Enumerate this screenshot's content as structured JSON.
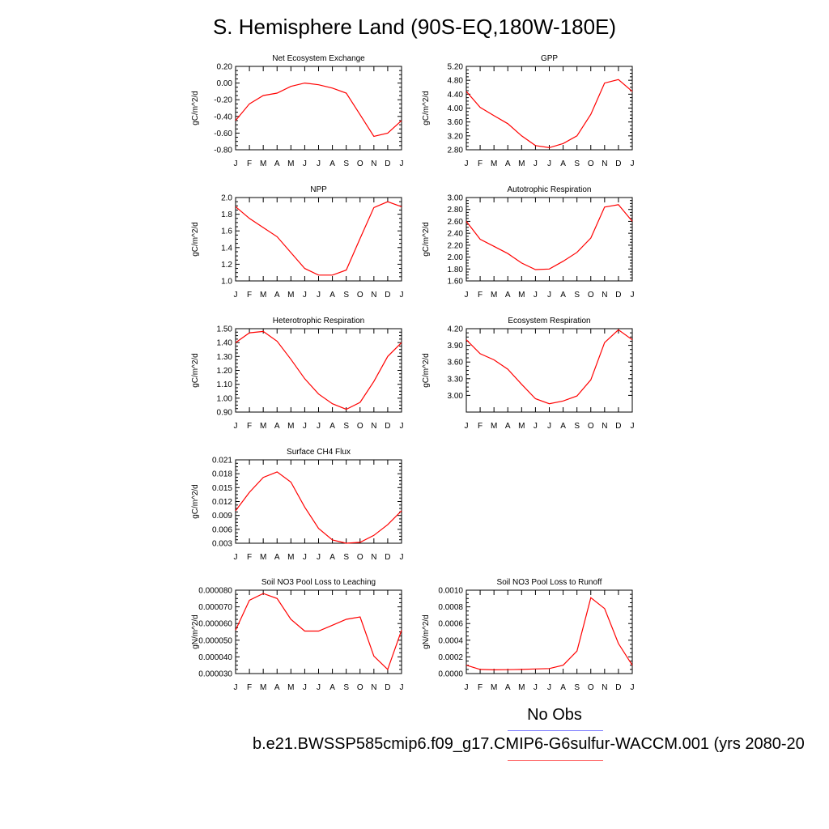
{
  "title": "S. Hemisphere Land (90S-EQ,180W-180E)",
  "colors": {
    "model": "#ff0000",
    "obs": "#8080ff",
    "axis": "#000000"
  },
  "legend": {
    "obs_label": "No Obs",
    "model_label": "b.e21.BWSSP585cmip6.f09_g17.CMIP6-G6sulfur-WACCM.001 (yrs 2080-20"
  },
  "chart_data": [
    {
      "type": "line",
      "title": "Net Ecosystem Exchange",
      "ylabel": "gC/m^2/d",
      "x": [
        "J",
        "F",
        "M",
        "A",
        "M",
        "J",
        "J",
        "A",
        "S",
        "O",
        "N",
        "D",
        "J"
      ],
      "ylim": [
        -0.8,
        0.2
      ],
      "yticks": [
        "0.20",
        "0.00",
        "-0.20",
        "-0.40",
        "-0.60",
        "-0.80"
      ],
      "yticks_values": [
        0.2,
        0.0,
        -0.2,
        -0.4,
        -0.6,
        -0.8
      ],
      "series": [
        {
          "values": [
            -0.45,
            -0.25,
            -0.15,
            -0.12,
            -0.04,
            0.0,
            -0.02,
            -0.06,
            -0.12,
            -0.38,
            -0.64,
            -0.6,
            -0.45
          ]
        }
      ]
    },
    {
      "type": "line",
      "title": "GPP",
      "ylabel": "gC/m^2/d",
      "x": [
        "J",
        "F",
        "M",
        "A",
        "M",
        "J",
        "J",
        "A",
        "S",
        "O",
        "N",
        "D",
        "J"
      ],
      "ylim": [
        2.8,
        5.2
      ],
      "yticks": [
        "5.20",
        "4.80",
        "4.40",
        "4.00",
        "3.60",
        "3.20",
        "2.80"
      ],
      "yticks_values": [
        5.2,
        4.8,
        4.4,
        4.0,
        3.6,
        3.2,
        2.8
      ],
      "series": [
        {
          "values": [
            4.48,
            4.02,
            3.78,
            3.55,
            3.2,
            2.92,
            2.86,
            2.98,
            3.2,
            3.82,
            4.72,
            4.82,
            4.48
          ]
        }
      ]
    },
    {
      "type": "line",
      "title": "NPP",
      "ylabel": "gC/m^2/d",
      "x": [
        "J",
        "F",
        "M",
        "A",
        "M",
        "J",
        "J",
        "A",
        "S",
        "O",
        "N",
        "D",
        "J"
      ],
      "ylim": [
        1.0,
        2.0
      ],
      "yticks": [
        "2.0",
        "1.8",
        "1.6",
        "1.4",
        "1.2",
        "1.0"
      ],
      "yticks_values": [
        2.0,
        1.8,
        1.6,
        1.4,
        1.2,
        1.0
      ],
      "series": [
        {
          "values": [
            1.89,
            1.75,
            1.64,
            1.53,
            1.34,
            1.15,
            1.07,
            1.07,
            1.13,
            1.51,
            1.88,
            1.95,
            1.89
          ]
        }
      ]
    },
    {
      "type": "line",
      "title": "Autotrophic Respiration",
      "ylabel": "gC/m^2/d",
      "x": [
        "J",
        "F",
        "M",
        "A",
        "M",
        "J",
        "J",
        "A",
        "S",
        "O",
        "N",
        "D",
        "J"
      ],
      "ylim": [
        1.6,
        3.0
      ],
      "yticks": [
        "3.00",
        "2.80",
        "2.60",
        "2.40",
        "2.20",
        "2.00",
        "1.80",
        "1.60"
      ],
      "yticks_values": [
        3.0,
        2.8,
        2.6,
        2.4,
        2.2,
        2.0,
        1.8,
        1.6
      ],
      "series": [
        {
          "values": [
            2.6,
            2.3,
            2.18,
            2.06,
            1.9,
            1.79,
            1.8,
            1.93,
            2.08,
            2.32,
            2.84,
            2.88,
            2.6
          ]
        }
      ]
    },
    {
      "type": "line",
      "title": "Heterotrophic Respiration",
      "ylabel": "gC/m^2/d",
      "x": [
        "J",
        "F",
        "M",
        "A",
        "M",
        "J",
        "J",
        "A",
        "S",
        "O",
        "N",
        "D",
        "J"
      ],
      "ylim": [
        0.9,
        1.5
      ],
      "yticks": [
        "1.50",
        "1.40",
        "1.30",
        "1.20",
        "1.10",
        "1.00",
        "0.90"
      ],
      "yticks_values": [
        1.5,
        1.4,
        1.3,
        1.2,
        1.1,
        1.0,
        0.9
      ],
      "series": [
        {
          "values": [
            1.4,
            1.47,
            1.48,
            1.41,
            1.28,
            1.14,
            1.03,
            0.96,
            0.92,
            0.97,
            1.12,
            1.3,
            1.4
          ]
        }
      ]
    },
    {
      "type": "line",
      "title": "Ecosystem Respiration",
      "ylabel": "gC/m^2/d",
      "x": [
        "J",
        "F",
        "M",
        "A",
        "M",
        "J",
        "J",
        "A",
        "S",
        "O",
        "N",
        "D",
        "J"
      ],
      "ylim": [
        2.7,
        4.2
      ],
      "yticks": [
        "4.20",
        "3.90",
        "3.60",
        "3.30",
        "3.00"
      ],
      "yticks_values": [
        4.2,
        3.9,
        3.6,
        3.3,
        3.0
      ],
      "series": [
        {
          "values": [
            4.0,
            3.75,
            3.64,
            3.47,
            3.2,
            2.94,
            2.85,
            2.9,
            2.99,
            3.28,
            3.95,
            4.18,
            4.0
          ]
        }
      ]
    },
    {
      "type": "line",
      "title": "Surface CH4 Flux",
      "ylabel": "gC/m^2/d",
      "x": [
        "J",
        "F",
        "M",
        "A",
        "M",
        "J",
        "J",
        "A",
        "S",
        "O",
        "N",
        "D",
        "J"
      ],
      "ylim": [
        0.003,
        0.021
      ],
      "yticks": [
        "0.021",
        "0.018",
        "0.015",
        "0.012",
        "0.009",
        "0.006",
        "0.003"
      ],
      "yticks_values": [
        0.021,
        0.018,
        0.015,
        0.012,
        0.009,
        0.006,
        0.003
      ],
      "series": [
        {
          "values": [
            0.01,
            0.014,
            0.0172,
            0.0184,
            0.0162,
            0.0108,
            0.0062,
            0.0037,
            0.003,
            0.0032,
            0.0047,
            0.007,
            0.01
          ]
        }
      ]
    },
    {
      "type": "line",
      "title": "Soil NO3 Pool Loss to Leaching",
      "ylabel": "gN/m^2/d",
      "x": [
        "J",
        "F",
        "M",
        "A",
        "M",
        "J",
        "J",
        "A",
        "S",
        "O",
        "N",
        "D",
        "J"
      ],
      "ylim": [
        3e-05,
        8e-05
      ],
      "yticks": [
        "0.000080",
        "0.000070",
        "0.000060",
        "0.000050",
        "0.000040",
        "0.000030"
      ],
      "yticks_values": [
        8e-05,
        7e-05,
        6e-05,
        5e-05,
        4e-05,
        3e-05
      ],
      "series": [
        {
          "values": [
            5.6e-05,
            7.4e-05,
            7.8e-05,
            7.5e-05,
            6.25e-05,
            5.55e-05,
            5.55e-05,
            5.9e-05,
            6.25e-05,
            6.4e-05,
            4.05e-05,
            3.25e-05,
            5.6e-05
          ]
        }
      ]
    },
    {
      "type": "line",
      "title": "Soil NO3 Pool Loss to Runoff",
      "ylabel": "gN/m^2/d",
      "x": [
        "J",
        "F",
        "M",
        "A",
        "M",
        "J",
        "J",
        "A",
        "S",
        "O",
        "N",
        "D",
        "J"
      ],
      "ylim": [
        0.0,
        0.001
      ],
      "yticks": [
        "0.0010",
        "0.0008",
        "0.0006",
        "0.0004",
        "0.0002",
        "0.0000"
      ],
      "yticks_values": [
        0.001,
        0.0008,
        0.0006,
        0.0004,
        0.0002,
        0.0
      ],
      "series": [
        {
          "values": [
            0.0001,
            5e-05,
            4.5e-05,
            4.7e-05,
            5e-05,
            5.5e-05,
            6e-05,
            0.0001,
            0.00027,
            0.00091,
            0.00078,
            0.00036,
            0.0001
          ]
        }
      ]
    }
  ]
}
